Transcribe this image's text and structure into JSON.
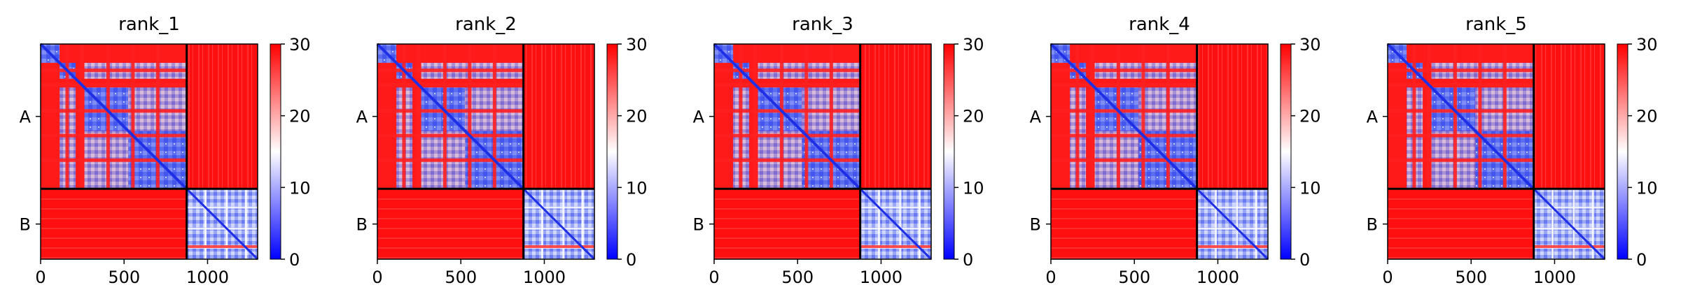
{
  "figure": {
    "colormap": {
      "low": "#0000ff",
      "mid": "#ffffff",
      "high": "#ff0000"
    },
    "colorbar": {
      "min": 0,
      "max": 30,
      "ticks": [
        0,
        10,
        20,
        30
      ]
    }
  },
  "chart_data": [
    {
      "type": "heatmap",
      "title": "rank_1",
      "xlabel": "",
      "ylabel": "",
      "xlim": [
        0,
        1300
      ],
      "x_ticks": [
        0,
        500,
        1000
      ],
      "chain_labels": [
        "A",
        "B"
      ],
      "chain_boundary": 875,
      "colorbar": {
        "min": 0,
        "max": 30,
        "ticks": [
          0,
          10,
          20,
          30
        ]
      }
    },
    {
      "type": "heatmap",
      "title": "rank_2",
      "xlabel": "",
      "ylabel": "",
      "xlim": [
        0,
        1300
      ],
      "x_ticks": [
        0,
        500,
        1000
      ],
      "chain_labels": [
        "A",
        "B"
      ],
      "chain_boundary": 875,
      "colorbar": {
        "min": 0,
        "max": 30,
        "ticks": [
          0,
          10,
          20,
          30
        ]
      }
    },
    {
      "type": "heatmap",
      "title": "rank_3",
      "xlabel": "",
      "ylabel": "",
      "xlim": [
        0,
        1300
      ],
      "x_ticks": [
        0,
        500,
        1000
      ],
      "chain_labels": [
        "A",
        "B"
      ],
      "chain_boundary": 875,
      "colorbar": {
        "min": 0,
        "max": 30,
        "ticks": [
          0,
          10,
          20,
          30
        ]
      }
    },
    {
      "type": "heatmap",
      "title": "rank_4",
      "xlabel": "",
      "ylabel": "",
      "xlim": [
        0,
        1300
      ],
      "x_ticks": [
        0,
        500,
        1000
      ],
      "chain_labels": [
        "A",
        "B"
      ],
      "chain_boundary": 875,
      "colorbar": {
        "min": 0,
        "max": 30,
        "ticks": [
          0,
          10,
          20,
          30
        ]
      }
    },
    {
      "type": "heatmap",
      "title": "rank_5",
      "xlabel": "",
      "ylabel": "",
      "xlim": [
        0,
        1300
      ],
      "x_ticks": [
        0,
        500,
        1000
      ],
      "chain_labels": [
        "A",
        "B"
      ],
      "chain_boundary": 875,
      "colorbar": {
        "min": 0,
        "max": 30,
        "ticks": [
          0,
          10,
          20,
          30
        ]
      }
    }
  ]
}
